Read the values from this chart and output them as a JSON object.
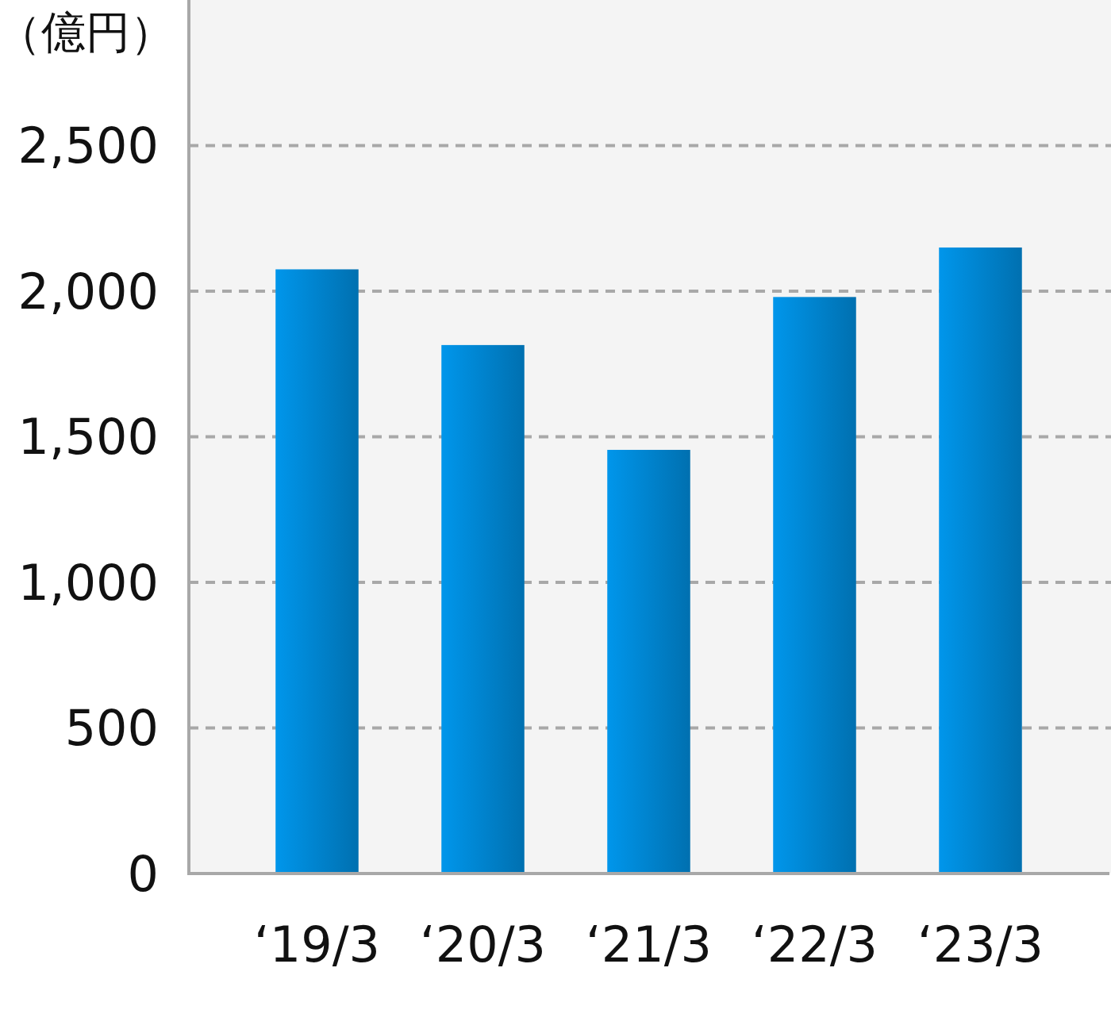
{
  "chart_data": {
    "type": "bar",
    "ylabel": "（億円）",
    "categories": [
      "‘19/3",
      "‘20/3",
      "‘21/3",
      "‘22/3",
      "‘23/3"
    ],
    "values": [
      2075,
      1815,
      1455,
      1980,
      2150
    ],
    "color": "#0084cf",
    "ylim": [
      0,
      3000
    ],
    "yticks": [
      0,
      500,
      {
        "value": 1000,
        "label": "1,000"
      },
      {
        "value": 1500,
        "label": "1,500"
      },
      {
        "value": 2000,
        "label": "2,000"
      },
      {
        "value": 2500,
        "label": "2,500"
      }
    ],
    "grid": "y"
  }
}
